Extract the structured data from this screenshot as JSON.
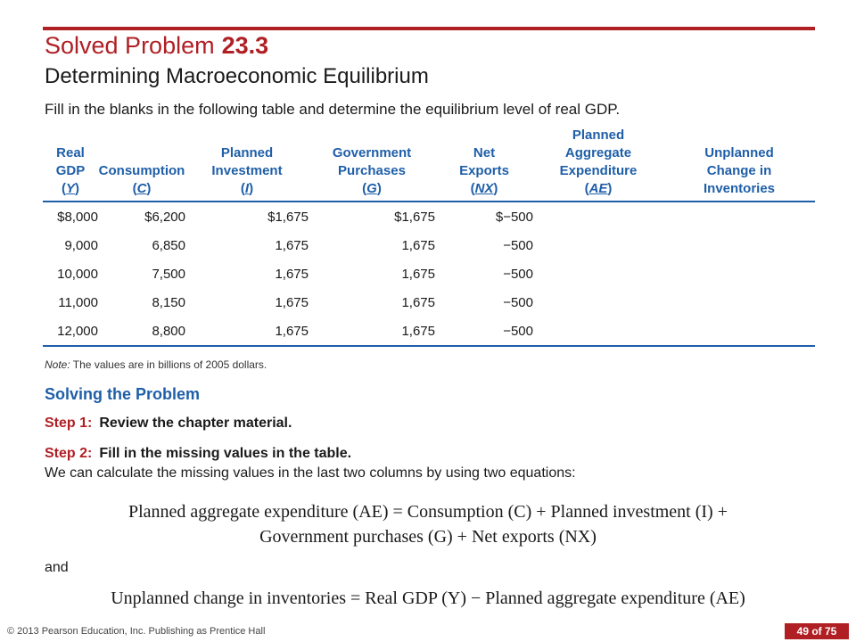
{
  "header": {
    "title": "Solved Problem",
    "number": "23.3",
    "subtitle": "Determining Macroeconomic Equilibrium"
  },
  "instruction": "Fill in the blanks in the following table and determine the equilibrium level of real GDP.",
  "table": {
    "headers": [
      {
        "lines": [
          "Real",
          "GDP"
        ],
        "sym": "Y"
      },
      {
        "lines": [
          "Consumption"
        ],
        "sym": "C"
      },
      {
        "lines": [
          "Planned",
          "Investment"
        ],
        "sym": "I"
      },
      {
        "lines": [
          "Government",
          "Purchases"
        ],
        "sym": "G"
      },
      {
        "lines": [
          "Net",
          "Exports"
        ],
        "sym": "NX"
      },
      {
        "lines": [
          "Planned",
          "Aggregate",
          "Expenditure"
        ],
        "sym": "AE"
      },
      {
        "lines": [
          "Unplanned",
          "Change in",
          "Inventories"
        ],
        "sym": ""
      }
    ],
    "rows": [
      [
        "$8,000",
        "$6,200",
        "$1,675",
        "$1,675",
        "$−500",
        "",
        ""
      ],
      [
        "9,000",
        "6,850",
        "1,675",
        "1,675",
        "−500",
        "",
        ""
      ],
      [
        "10,000",
        "7,500",
        "1,675",
        "1,675",
        "−500",
        "",
        ""
      ],
      [
        "11,000",
        "8,150",
        "1,675",
        "1,675",
        "−500",
        "",
        ""
      ],
      [
        "12,000",
        "8,800",
        "1,675",
        "1,675",
        "−500",
        "",
        ""
      ]
    ]
  },
  "note": {
    "label": "Note:",
    "text": " The values are in billions of 2005 dollars."
  },
  "solving": {
    "heading": "Solving the Problem",
    "step1_label": "Step 1:",
    "step1_text": "Review the chapter material.",
    "step2_label": "Step 2:",
    "step2_text": "Fill in the missing values in the table.",
    "intro": "We can calculate the missing values in the last two columns by using two equations:",
    "eq1_line1": "Planned aggregate expenditure (AE) = Consumption (C) + Planned investment (I) +",
    "eq1_line2": "Government purchases (G) + Net exports (NX)",
    "and": "and",
    "eq2": "Unplanned change in inventories = Real GDP (Y) − Planned aggregate expenditure (AE)"
  },
  "footer": {
    "copyright": "© 2013 Pearson Education, Inc. Publishing as Prentice Hall",
    "page": "49 of 75"
  }
}
